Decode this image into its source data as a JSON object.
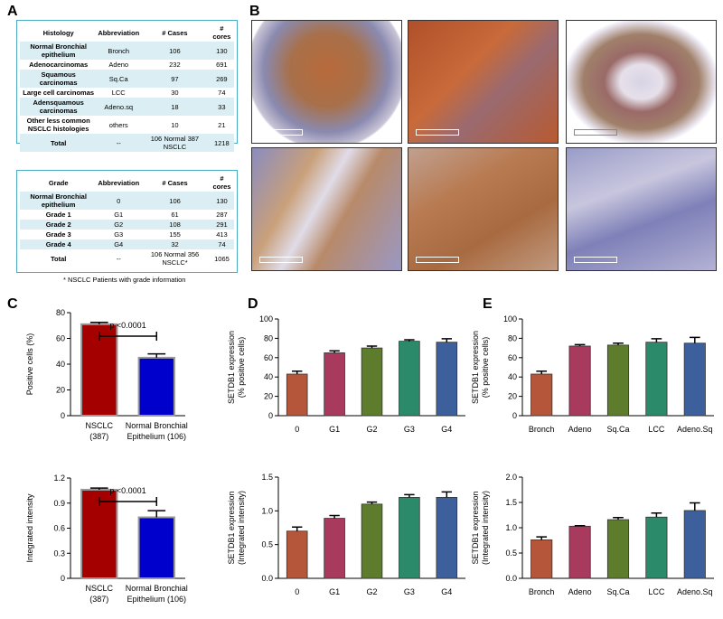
{
  "panel_labels": [
    "A",
    "B",
    "C",
    "D",
    "E"
  ],
  "tables": [
    {
      "header": [
        "Histology",
        "Abbreviation",
        "# Cases",
        "# cores"
      ],
      "rows": [
        [
          "Normal Bronchial epithelium",
          "Bronch",
          "106",
          "130"
        ],
        [
          "Adenocarcinomas",
          "Adeno",
          "232",
          "691"
        ],
        [
          "Squamous carcinomas",
          "Sq.Ca",
          "97",
          "269"
        ],
        [
          "Large cell carcinomas",
          "LCC",
          "30",
          "74"
        ],
        [
          "Adensquamous carcinomas",
          "Adeno.sq",
          "18",
          "33"
        ],
        [
          "Other less common NSCLC histologies",
          "others",
          "10",
          "21"
        ],
        [
          "Total",
          "--",
          "106 Normal 387 NSCLC",
          "1218"
        ]
      ]
    },
    {
      "header": [
        "Grade",
        "Abbreviation",
        "# Cases",
        "# cores"
      ],
      "rows": [
        [
          "Normal Bronchial epithelium",
          "0",
          "106",
          "130"
        ],
        [
          "Grade 1",
          "G1",
          "61",
          "287"
        ],
        [
          "Grade 2",
          "G2",
          "108",
          "291"
        ],
        [
          "Grade 3",
          "G3",
          "155",
          "413"
        ],
        [
          "Grade 4",
          "G4",
          "32",
          "74"
        ],
        [
          "Total",
          "--",
          "106 Normal 356 NSCLC*",
          "1065"
        ]
      ]
    }
  ],
  "footnote": "* NSCLC Patients with grade information",
  "chart_data": [
    {
      "type": "bar",
      "ylabel": "Positive cells (%)",
      "annotation": "p <0.0001",
      "categories": [
        "NSCLC\n(387)",
        "Normal Bronchial\nEpithelium (106)"
      ],
      "values": [
        71,
        45
      ],
      "errors": [
        1.5,
        3
      ],
      "colors": [
        "#a50000",
        "#0000cc"
      ],
      "ylim": [
        0,
        80
      ],
      "yticks": [
        0,
        20,
        40,
        60,
        80
      ]
    },
    {
      "type": "bar",
      "ylabel": "Integrated intensity",
      "annotation": "p <0.0001",
      "categories": [
        "NSCLC\n(387)",
        "Normal Bronchial\nEpithelium (106)"
      ],
      "values": [
        1.06,
        0.73
      ],
      "errors": [
        0.02,
        0.08
      ],
      "colors": [
        "#a50000",
        "#0000cc"
      ],
      "ylim": [
        0,
        1.2
      ],
      "yticks": [
        0,
        0.3,
        0.6,
        0.9,
        1.2
      ]
    },
    {
      "type": "bar",
      "ylabel": "SETDB1 expression\n(% positive cells)",
      "categories": [
        "0",
        "G1",
        "G2",
        "G3",
        "G4"
      ],
      "values": [
        43,
        65,
        70,
        77,
        76
      ],
      "errors": [
        3,
        2,
        2,
        1.5,
        3.5
      ],
      "colors": [
        "#b5563a",
        "#a83a5e",
        "#5e7d2c",
        "#2a8a6a",
        "#3d5f9c"
      ],
      "ylim": [
        0,
        100
      ],
      "yticks": [
        0,
        20,
        40,
        60,
        80,
        100
      ]
    },
    {
      "type": "bar",
      "ylabel": "SETDB1 expression\n(Integrated intensity)",
      "categories": [
        "0",
        "G1",
        "G2",
        "G3",
        "G4"
      ],
      "values": [
        0.7,
        0.89,
        1.1,
        1.2,
        1.2
      ],
      "errors": [
        0.06,
        0.04,
        0.03,
        0.04,
        0.08
      ],
      "colors": [
        "#b5563a",
        "#a83a5e",
        "#5e7d2c",
        "#2a8a6a",
        "#3d5f9c"
      ],
      "ylim": [
        0,
        1.5
      ],
      "yticks": [
        {
          "value": 0,
          "label": "0.0"
        },
        0.5,
        {
          "value": 1,
          "label": "1.0"
        },
        1.5
      ]
    },
    {
      "type": "bar",
      "ylabel": "SETDB1 expression\n(% positive cells)",
      "categories": [
        "Bronch",
        "Adeno",
        "Sq.Ca",
        "LCC",
        "Adeno.Sq"
      ],
      "values": [
        43,
        72,
        73,
        76,
        75
      ],
      "errors": [
        3,
        1.5,
        2,
        3.5,
        6
      ],
      "colors": [
        "#b5563a",
        "#a83a5e",
        "#5e7d2c",
        "#2a8a6a",
        "#3d5f9c"
      ],
      "ylim": [
        0,
        100
      ],
      "yticks": [
        0,
        20,
        40,
        60,
        80,
        100
      ]
    },
    {
      "type": "bar",
      "ylabel": "SETDB1 expression\n(Integrated intensity)",
      "categories": [
        "Bronch",
        "Adeno",
        "Sq.Ca",
        "LCC",
        "Adeno.Sq"
      ],
      "values": [
        0.76,
        1.03,
        1.16,
        1.21,
        1.34
      ],
      "errors": [
        0.06,
        0.01,
        0.04,
        0.08,
        0.15
      ],
      "colors": [
        "#b5563a",
        "#a83a5e",
        "#5e7d2c",
        "#2a8a6a",
        "#3d5f9c"
      ],
      "ylim": [
        0,
        2
      ],
      "yticks": [
        {
          "value": 0,
          "label": "0.0"
        },
        0.5,
        {
          "value": 1,
          "label": "1.0"
        },
        1.5,
        {
          "value": 2,
          "label": "2.0"
        }
      ]
    }
  ]
}
